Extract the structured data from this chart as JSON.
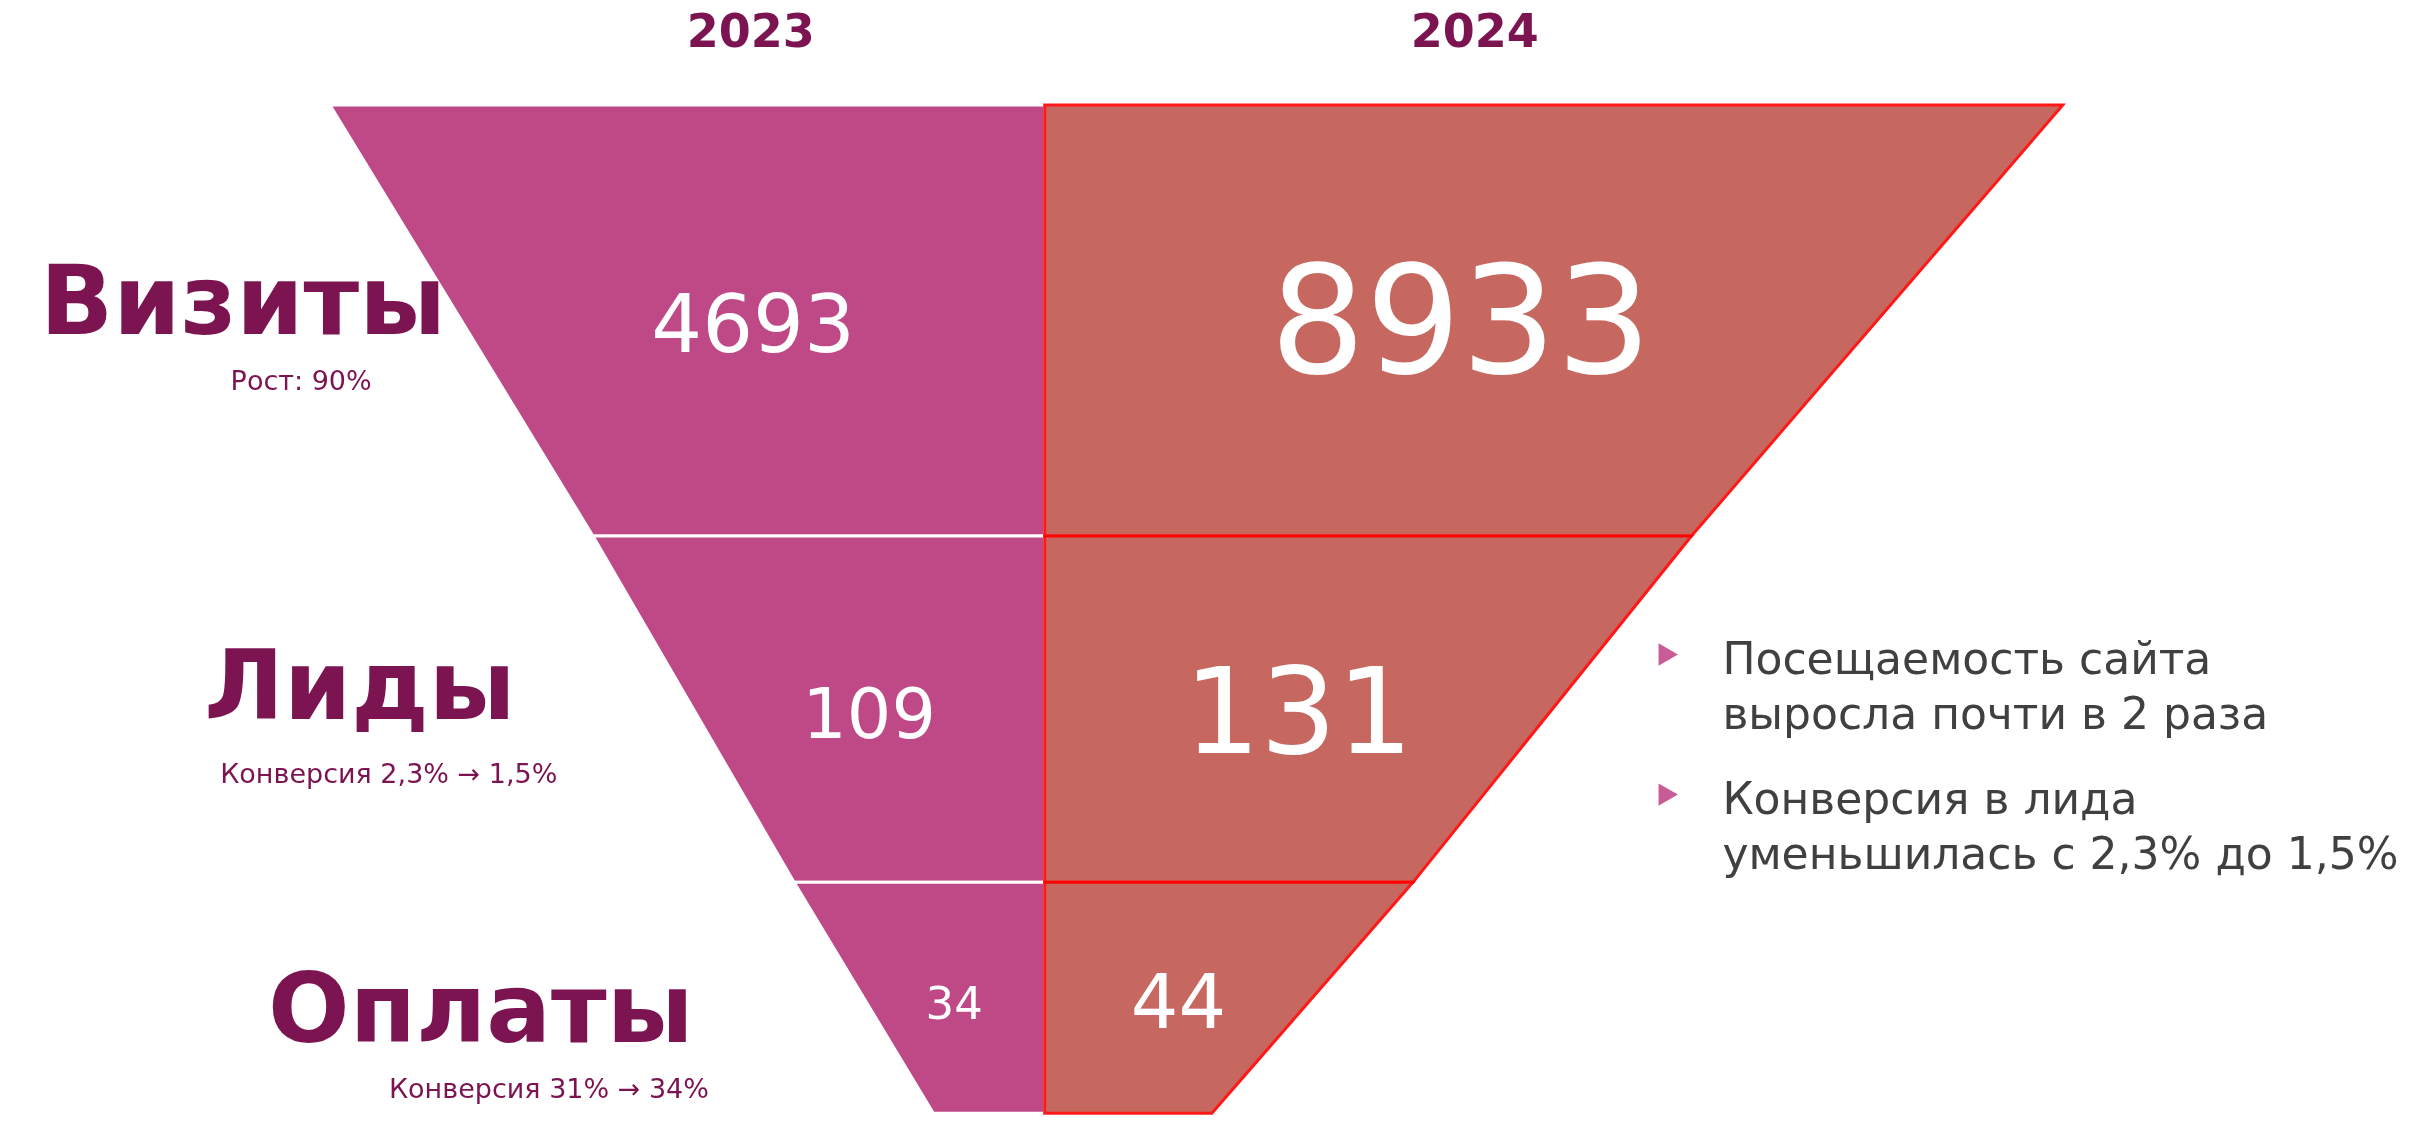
{
  "chart_data": {
    "type": "other",
    "categories": [
      "Визиты",
      "Лиды",
      "Оплаты"
    ],
    "series": [
      {
        "name": "2023",
        "color": "#b8367a",
        "values": [
          4693,
          109,
          34
        ]
      },
      {
        "name": "2024",
        "color": "#c0584f",
        "values": [
          8933,
          131,
          44
        ]
      }
    ],
    "data_labels": true,
    "annotations": [
      "Рост: 90%",
      "Конверсия 2,3% → 1,5%",
      "Конверсия 31% → 34%",
      "Посещаемость сайта выросла почти в 2 раза",
      "Конверсия в лида уменьшилась с 2,3% до 1,5%"
    ]
  }
}
